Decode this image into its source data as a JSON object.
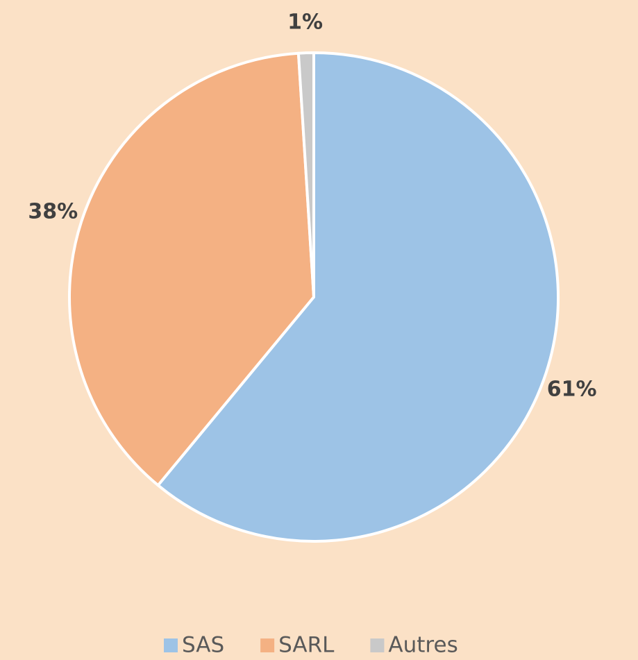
{
  "chart_data": {
    "type": "pie",
    "categories": [
      "SAS",
      "SARL",
      "Autres"
    ],
    "values": [
      61,
      38,
      1
    ],
    "value_labels": [
      "61%",
      "38%",
      "1%"
    ],
    "colors": [
      "#9dc3e6",
      "#f4b183",
      "#c9c9c9"
    ],
    "legend": "bottom"
  }
}
